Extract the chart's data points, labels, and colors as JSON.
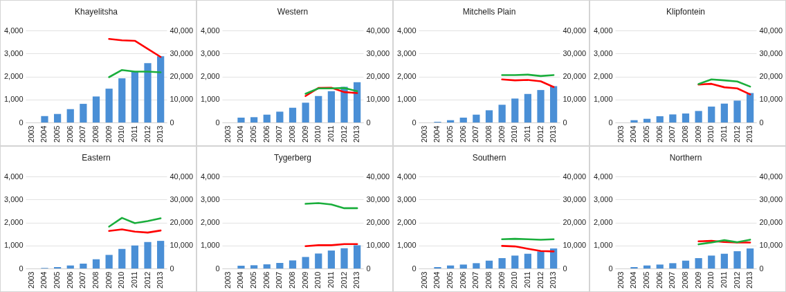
{
  "chart_data": [
    {
      "type": "bar",
      "title": "Khayelitsha",
      "categories": [
        "2003",
        "2004",
        "2005",
        "2006",
        "2007",
        "2008",
        "2009",
        "2010",
        "2011",
        "2012",
        "2013"
      ],
      "ylim": [
        0,
        4000
      ],
      "yticks": [
        {
          "value": 0,
          "label": "0"
        },
        {
          "value": 1000,
          "label": "1,000"
        },
        {
          "value": 2000,
          "label": "2,000"
        },
        {
          "value": 3000,
          "label": "3,000"
        },
        {
          "value": 4000,
          "label": "4,000"
        }
      ],
      "y2lim": [
        0,
        40000
      ],
      "y2ticks": [
        {
          "value": 0,
          "label": "0"
        },
        {
          "value": 10000,
          "label": "10,000"
        },
        {
          "value": 20000,
          "label": "20,000"
        },
        {
          "value": 30000,
          "label": "30,000"
        },
        {
          "value": 40000,
          "label": "40,000"
        }
      ],
      "grid": "y",
      "series": [
        {
          "type": "bar",
          "color": "#4a8fd6",
          "values": [
            0,
            280,
            370,
            580,
            810,
            1130,
            1470,
            1920,
            2200,
            2580,
            2880
          ]
        },
        {
          "type": "line",
          "axis": "y2",
          "color": "#ff0000",
          "values": [
            null,
            null,
            null,
            null,
            null,
            null,
            36300,
            35700,
            35500,
            32000,
            28500
          ]
        },
        {
          "type": "line",
          "axis": "y2",
          "color": "#1aae3c",
          "values": [
            null,
            null,
            null,
            null,
            null,
            null,
            19700,
            22800,
            22100,
            22100,
            21800
          ]
        }
      ]
    },
    {
      "type": "bar",
      "title": "Western",
      "categories": [
        "2003",
        "2004",
        "2005",
        "2006",
        "2007",
        "2008",
        "2009",
        "2010",
        "2011",
        "2012",
        "2013"
      ],
      "ylim": [
        0,
        4000
      ],
      "yticks": [
        {
          "value": 0,
          "label": "0"
        },
        {
          "value": 1000,
          "label": "1,000"
        },
        {
          "value": 2000,
          "label": "2,000"
        },
        {
          "value": 3000,
          "label": "3,000"
        },
        {
          "value": 4000,
          "label": "4,000"
        }
      ],
      "y2lim": [
        0,
        40000
      ],
      "y2ticks": [
        {
          "value": 0,
          "label": "0"
        },
        {
          "value": 10000,
          "label": "10,000"
        },
        {
          "value": 20000,
          "label": "20,000"
        },
        {
          "value": 30000,
          "label": "30,000"
        },
        {
          "value": 40000,
          "label": "40,000"
        }
      ],
      "grid": "y",
      "series": [
        {
          "type": "bar",
          "color": "#4a8fd6",
          "values": [
            0,
            210,
            230,
            340,
            470,
            640,
            860,
            1150,
            1360,
            1550,
            1750
          ]
        },
        {
          "type": "line",
          "axis": "y2",
          "color": "#ff0000",
          "values": [
            null,
            null,
            null,
            null,
            null,
            null,
            11500,
            15000,
            15100,
            13200,
            12800
          ]
        },
        {
          "type": "line",
          "axis": "y2",
          "color": "#1aae3c",
          "values": [
            null,
            null,
            null,
            null,
            null,
            null,
            12500,
            14800,
            14800,
            15000,
            13600
          ]
        }
      ]
    },
    {
      "type": "bar",
      "title": "Mitchells Plain",
      "categories": [
        "2003",
        "2004",
        "2005",
        "2006",
        "2007",
        "2008",
        "2009",
        "2010",
        "2011",
        "2012",
        "2013"
      ],
      "ylim": [
        0,
        4000
      ],
      "yticks": [
        {
          "value": 0,
          "label": "0"
        },
        {
          "value": 1000,
          "label": "1,000"
        },
        {
          "value": 2000,
          "label": "2,000"
        },
        {
          "value": 3000,
          "label": "3,000"
        },
        {
          "value": 4000,
          "label": "4,000"
        }
      ],
      "y2lim": [
        0,
        40000
      ],
      "y2ticks": [
        {
          "value": 0,
          "label": "0"
        },
        {
          "value": 10000,
          "label": "10,000"
        },
        {
          "value": 20000,
          "label": "20,000"
        },
        {
          "value": 30000,
          "label": "30,000"
        },
        {
          "value": 40000,
          "label": "40,000"
        }
      ],
      "grid": "y",
      "series": [
        {
          "type": "bar",
          "color": "#4a8fd6",
          "values": [
            0,
            30,
            100,
            210,
            340,
            530,
            770,
            1040,
            1240,
            1410,
            1580
          ]
        },
        {
          "type": "line",
          "axis": "y2",
          "color": "#ff0000",
          "values": [
            null,
            null,
            null,
            null,
            null,
            null,
            18700,
            18300,
            18500,
            17900,
            15400
          ]
        },
        {
          "type": "line",
          "axis": "y2",
          "color": "#1aae3c",
          "values": [
            null,
            null,
            null,
            null,
            null,
            null,
            20600,
            20600,
            20800,
            20200,
            20600
          ]
        }
      ]
    },
    {
      "type": "bar",
      "title": "Klipfontein",
      "categories": [
        "2003",
        "2004",
        "2005",
        "2006",
        "2007",
        "2008",
        "2009",
        "2010",
        "2011",
        "2012",
        "2013"
      ],
      "ylim": [
        0,
        4000
      ],
      "yticks": [
        {
          "value": 0,
          "label": "0"
        },
        {
          "value": 1000,
          "label": "1,000"
        },
        {
          "value": 2000,
          "label": "2,000"
        },
        {
          "value": 3000,
          "label": "3,000"
        },
        {
          "value": 4000,
          "label": "4,000"
        }
      ],
      "y2lim": [
        0,
        40000
      ],
      "y2ticks": [
        {
          "value": 0,
          "label": "0"
        },
        {
          "value": 10000,
          "label": "10,000"
        },
        {
          "value": 20000,
          "label": "20,000"
        },
        {
          "value": 30000,
          "label": "30,000"
        },
        {
          "value": 40000,
          "label": "40,000"
        }
      ],
      "grid": "y",
      "series": [
        {
          "type": "bar",
          "color": "#4a8fd6",
          "values": [
            0,
            100,
            160,
            270,
            350,
            390,
            500,
            690,
            820,
            950,
            1280
          ]
        },
        {
          "type": "line",
          "axis": "y2",
          "color": "#ff0000",
          "values": [
            null,
            null,
            null,
            null,
            null,
            null,
            16500,
            16800,
            15300,
            14800,
            12200
          ]
        },
        {
          "type": "line",
          "axis": "y2",
          "color": "#1aae3c",
          "values": [
            null,
            null,
            null,
            null,
            null,
            null,
            16700,
            18700,
            18300,
            17800,
            15600
          ]
        }
      ]
    },
    {
      "type": "bar",
      "title": "Eastern",
      "categories": [
        "2003",
        "2004",
        "2005",
        "2006",
        "2007",
        "2008",
        "2009",
        "2010",
        "2011",
        "2012",
        "2013"
      ],
      "ylim": [
        0,
        4000
      ],
      "yticks": [
        {
          "value": 0,
          "label": "0"
        },
        {
          "value": 1000,
          "label": "1,000"
        },
        {
          "value": 2000,
          "label": "2,000"
        },
        {
          "value": 3000,
          "label": "3,000"
        },
        {
          "value": 4000,
          "label": "4,000"
        }
      ],
      "y2lim": [
        0,
        40000
      ],
      "y2ticks": [
        {
          "value": 0,
          "label": "0"
        },
        {
          "value": 10000,
          "label": "10,000"
        },
        {
          "value": 20000,
          "label": "20,000"
        },
        {
          "value": 30000,
          "label": "30,000"
        },
        {
          "value": 40000,
          "label": "40,000"
        }
      ],
      "grid": "y",
      "series": [
        {
          "type": "bar",
          "color": "#4a8fd6",
          "values": [
            0,
            20,
            60,
            130,
            210,
            400,
            590,
            850,
            1000,
            1150,
            1200
          ]
        },
        {
          "type": "line",
          "axis": "y2",
          "color": "#ff0000",
          "values": [
            null,
            null,
            null,
            null,
            null,
            null,
            16300,
            17000,
            16000,
            15600,
            16500
          ]
        },
        {
          "type": "line",
          "axis": "y2",
          "color": "#1aae3c",
          "values": [
            null,
            null,
            null,
            null,
            null,
            null,
            18200,
            22000,
            19700,
            20600,
            21800
          ]
        }
      ]
    },
    {
      "type": "bar",
      "title": "Tygerberg",
      "categories": [
        "2003",
        "2004",
        "2005",
        "2006",
        "2007",
        "2008",
        "2009",
        "2010",
        "2011",
        "2012",
        "2013"
      ],
      "ylim": [
        0,
        4000
      ],
      "yticks": [
        {
          "value": 0,
          "label": "0"
        },
        {
          "value": 1000,
          "label": "1,000"
        },
        {
          "value": 2000,
          "label": "2,000"
        },
        {
          "value": 3000,
          "label": "3,000"
        },
        {
          "value": 4000,
          "label": "4,000"
        }
      ],
      "y2lim": [
        0,
        40000
      ],
      "y2ticks": [
        {
          "value": 0,
          "label": "0"
        },
        {
          "value": 10000,
          "label": "10,000"
        },
        {
          "value": 20000,
          "label": "20,000"
        },
        {
          "value": 30000,
          "label": "30,000"
        },
        {
          "value": 40000,
          "label": "40,000"
        }
      ],
      "grid": "y",
      "series": [
        {
          "type": "bar",
          "color": "#4a8fd6",
          "values": [
            0,
            120,
            140,
            180,
            240,
            350,
            500,
            650,
            780,
            880,
            1010
          ]
        },
        {
          "type": "line",
          "axis": "y2",
          "color": "#ff0000",
          "values": [
            null,
            null,
            null,
            null,
            null,
            null,
            9700,
            10100,
            10100,
            10600,
            10600
          ]
        },
        {
          "type": "line",
          "axis": "y2",
          "color": "#1aae3c",
          "values": [
            null,
            null,
            null,
            null,
            null,
            null,
            28100,
            28400,
            27800,
            26200,
            26200
          ]
        }
      ]
    },
    {
      "type": "bar",
      "title": "Southern",
      "categories": [
        "2003",
        "2004",
        "2005",
        "2006",
        "2007",
        "2008",
        "2009",
        "2010",
        "2011",
        "2012",
        "2013"
      ],
      "ylim": [
        0,
        4000
      ],
      "yticks": [
        {
          "value": 0,
          "label": "0"
        },
        {
          "value": 1000,
          "label": "1,000"
        },
        {
          "value": 2000,
          "label": "2,000"
        },
        {
          "value": 3000,
          "label": "3,000"
        },
        {
          "value": 4000,
          "label": "4,000"
        }
      ],
      "y2lim": [
        0,
        40000
      ],
      "y2ticks": [
        {
          "value": 0,
          "label": "0"
        },
        {
          "value": 10000,
          "label": "10,000"
        },
        {
          "value": 20000,
          "label": "20,000"
        },
        {
          "value": 30000,
          "label": "30,000"
        },
        {
          "value": 40000,
          "label": "40,000"
        }
      ],
      "grid": "y",
      "series": [
        {
          "type": "bar",
          "color": "#4a8fd6",
          "values": [
            0,
            60,
            130,
            170,
            230,
            340,
            450,
            560,
            640,
            740,
            870
          ]
        },
        {
          "type": "line",
          "axis": "y2",
          "color": "#ff0000",
          "values": [
            null,
            null,
            null,
            null,
            null,
            null,
            9800,
            9600,
            8600,
            7600,
            7400
          ]
        },
        {
          "type": "line",
          "axis": "y2",
          "color": "#1aae3c",
          "values": [
            null,
            null,
            null,
            null,
            null,
            null,
            12700,
            12900,
            12700,
            12500,
            12700
          ]
        }
      ]
    },
    {
      "type": "bar",
      "title": "Northern",
      "categories": [
        "2003",
        "2004",
        "2005",
        "2006",
        "2007",
        "2008",
        "2009",
        "2010",
        "2011",
        "2012",
        "2013"
      ],
      "ylim": [
        0,
        4000
      ],
      "yticks": [
        {
          "value": 0,
          "label": "0"
        },
        {
          "value": 1000,
          "label": "1,000"
        },
        {
          "value": 2000,
          "label": "2,000"
        },
        {
          "value": 3000,
          "label": "3,000"
        },
        {
          "value": 4000,
          "label": "4,000"
        }
      ],
      "y2lim": [
        0,
        40000
      ],
      "y2ticks": [
        {
          "value": 0,
          "label": "0"
        },
        {
          "value": 10000,
          "label": "10,000"
        },
        {
          "value": 20000,
          "label": "20,000"
        },
        {
          "value": 30000,
          "label": "30,000"
        },
        {
          "value": 40000,
          "label": "40,000"
        }
      ],
      "grid": "y",
      "series": [
        {
          "type": "bar",
          "color": "#4a8fd6",
          "values": [
            0,
            60,
            130,
            170,
            230,
            340,
            450,
            560,
            640,
            750,
            870
          ]
        },
        {
          "type": "line",
          "axis": "y2",
          "color": "#ff0000",
          "values": [
            null,
            null,
            null,
            null,
            null,
            null,
            11800,
            12000,
            11500,
            11300,
            11300
          ]
        },
        {
          "type": "line",
          "axis": "y2",
          "color": "#1aae3c",
          "values": [
            null,
            null,
            null,
            null,
            null,
            null,
            10500,
            11300,
            12300,
            11400,
            12500
          ]
        }
      ]
    }
  ]
}
